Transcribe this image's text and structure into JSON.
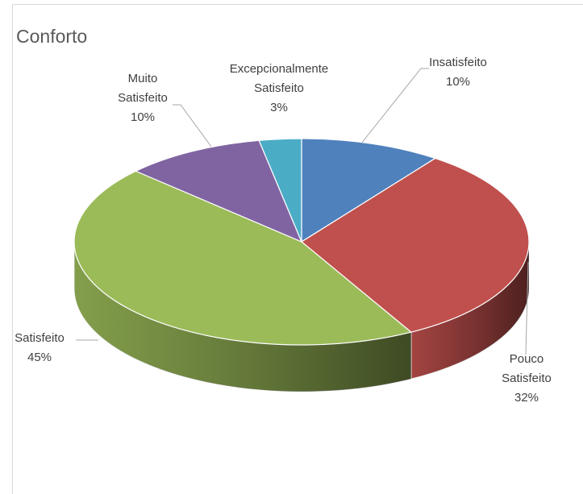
{
  "chart_data": {
    "type": "pie",
    "title": "Conforto",
    "categories": [
      "Insatisfeito",
      "Pouco Satisfeito",
      "Satisfeito",
      "Muito Satisfeito",
      "Excepcionalmente Satisfeito"
    ],
    "values": [
      10,
      32,
      45,
      10,
      3
    ],
    "value_labels": [
      "10%",
      "32%",
      "45%",
      "10%",
      "3%"
    ],
    "colors": [
      "#4f81bd",
      "#c0504d",
      "#9bbb59",
      "#8064a2",
      "#4bacc6"
    ],
    "three_d": true
  }
}
